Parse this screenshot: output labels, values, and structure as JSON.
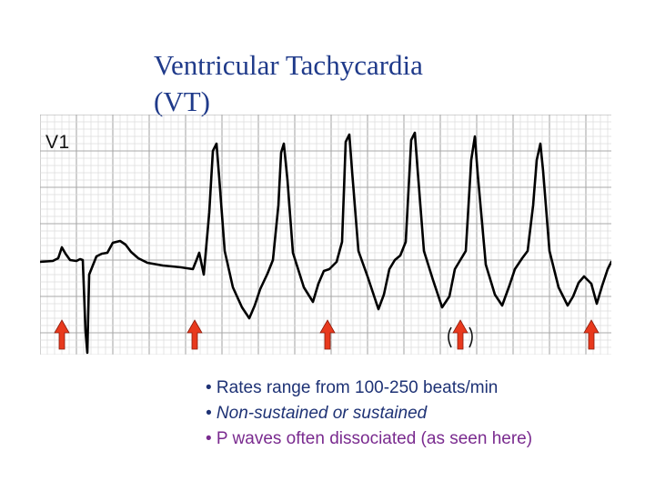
{
  "slide": {
    "title_line1": "Ventricular Tachycardia",
    "title_line2": "(VT)"
  },
  "ecg": {
    "lead_label": "V1",
    "colors": {
      "grid_minor": "#dcdcdc",
      "grid_major": "#a9a9a9",
      "trace": "#000000",
      "arrow": "#e8391d",
      "arrow_outline": "#8a1a0a"
    },
    "arrow_count": 5,
    "bracketed_arrow_index": 3
  },
  "bullets": [
    "• Rates range from 100-250 beats/min",
    "• Non-sustained or sustained",
    "• P waves often dissociated (as seen here)"
  ]
}
